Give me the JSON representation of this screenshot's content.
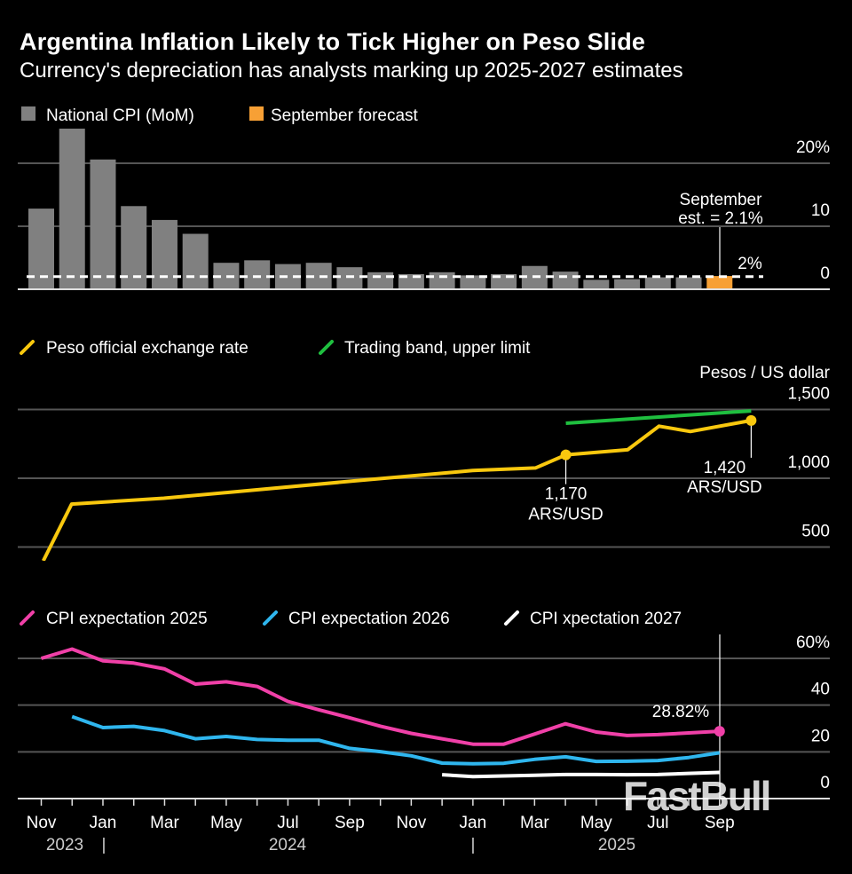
{
  "title": "Argentina Inflation Likely to Tick Higher on Peso Slide",
  "subtitle": "Currency's depreciation has analysts marking up 2025-2027 estimates",
  "watermark": "FastBull",
  "chart_data": [
    {
      "type": "bar",
      "legend": [
        {
          "label": "National CPI (MoM)",
          "color": "#808080"
        },
        {
          "label": "September forecast",
          "color": "#f7a035"
        }
      ],
      "categories": [
        "2023-11",
        "2023-12",
        "2024-01",
        "2024-02",
        "2024-03",
        "2024-04",
        "2024-05",
        "2024-06",
        "2024-07",
        "2024-08",
        "2024-09",
        "2024-10",
        "2024-11",
        "2024-12",
        "2025-01",
        "2025-02",
        "2025-03",
        "2025-04",
        "2025-05",
        "2025-06",
        "2025-07",
        "2025-08",
        "2025-09"
      ],
      "values": [
        12.8,
        25.5,
        20.6,
        13.2,
        11.0,
        8.8,
        4.2,
        4.6,
        4.0,
        4.2,
        3.5,
        2.7,
        2.4,
        2.7,
        2.2,
        2.4,
        3.7,
        2.8,
        1.5,
        1.6,
        1.9,
        1.9,
        2.1
      ],
      "forecast_index": 22,
      "yticks": [
        "0",
        "10",
        "20%"
      ],
      "ytick_values": [
        0,
        10,
        20
      ],
      "ylim": [
        0,
        26
      ],
      "reference_line": {
        "value": 2,
        "label": "2%"
      },
      "annotation": {
        "line1": "September",
        "line2": "est. = 2.1%"
      },
      "grid": true
    },
    {
      "type": "line",
      "legend": [
        {
          "label": "Peso official exchange rate",
          "color": "#f9c80e"
        },
        {
          "label": "Trading band, upper limit",
          "color": "#1fbf3f"
        }
      ],
      "unit_label": "Pesos / US dollar",
      "yticks": [
        "500",
        "1,000",
        "1,500"
      ],
      "ytick_values": [
        500,
        1000,
        1500
      ],
      "ylim": [
        400,
        1600
      ],
      "series": [
        {
          "name": "Peso official exchange rate",
          "color": "#f9c80e",
          "x": [
            "2023-11-03",
            "2023-12-01",
            "2024-03-01",
            "2024-06-01",
            "2024-09-06",
            "2024-12-31",
            "2025-03-03",
            "2025-04-02",
            "2025-06-02",
            "2025-07-03",
            "2025-08-03",
            "2025-10-02"
          ],
          "y": [
            400,
            812,
            855,
            916,
            981,
            1056,
            1075,
            1170,
            1207,
            1379,
            1340,
            1420
          ]
        },
        {
          "name": "Trading band, upper limit",
          "color": "#1fbf3f",
          "x": [
            "2025-04-02",
            "2025-09-01",
            "2025-10-02"
          ],
          "y": [
            1400,
            1475,
            1490
          ]
        }
      ],
      "annotations": [
        {
          "x": "2025-04-02",
          "y": 1170,
          "line1": "1,170",
          "line2": "ARS/USD"
        },
        {
          "x": "2025-10-02",
          "y": 1420,
          "line1": "1,420",
          "line2": "ARS/USD"
        }
      ],
      "grid": true
    },
    {
      "type": "line",
      "legend": [
        {
          "label": "CPI expectation 2025",
          "color": "#f040a8"
        },
        {
          "label": "CPI expectation 2026",
          "color": "#2fb6ee"
        },
        {
          "label": "CPI xpectation 2027",
          "color": "#ffffff"
        }
      ],
      "yticks": [
        "0",
        "20",
        "40",
        "60%"
      ],
      "ytick_values": [
        0,
        20,
        40,
        60
      ],
      "ylim": [
        0,
        65
      ],
      "series": [
        {
          "name": "CPI expectation 2025",
          "color": "#f040a8",
          "start": "2023-11",
          "y": [
            60,
            64,
            59,
            58,
            55.5,
            49,
            50,
            48,
            41.6,
            38,
            34.6,
            31,
            27.9,
            25.6,
            23.3,
            23.3,
            27.6,
            32,
            28.5,
            27,
            27.4,
            28.1,
            28.82
          ]
        },
        {
          "name": "CPI expectation 2026",
          "color": "#2fb6ee",
          "start": "2023-12",
          "y": [
            35.1,
            30.4,
            30.9,
            29.1,
            25.6,
            26.6,
            25.3,
            25,
            25,
            21.5,
            20.1,
            18.3,
            15.2,
            14.9,
            15.1,
            16.8,
            17.9,
            15.9,
            16,
            16.3,
            17.6,
            19.6
          ]
        },
        {
          "name": "CPI xpectation 2027",
          "color": "#ffffff",
          "start": "2024-12",
          "y": [
            10.2,
            9.4,
            9.7,
            10,
            10.3,
            10.3,
            10.2,
            10.3,
            10.8,
            11.2
          ]
        }
      ],
      "end_label": "28.82%",
      "xticks": [
        "Nov",
        "Jan",
        "Mar",
        "May",
        "Jul",
        "Sep",
        "Nov",
        "Jan",
        "Mar",
        "May",
        "Jul",
        "Sep"
      ],
      "years": [
        "2023",
        "2024",
        "2025"
      ],
      "year_separator": "|",
      "grid": true
    }
  ]
}
